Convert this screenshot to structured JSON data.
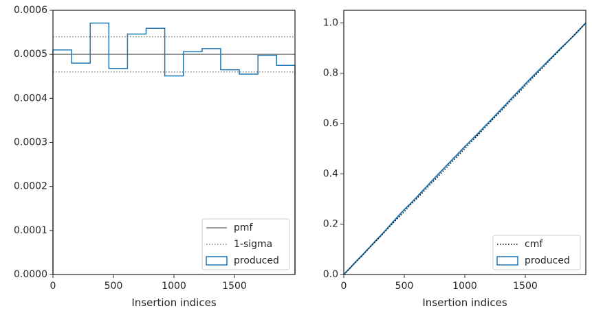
{
  "chart_data": [
    {
      "type": "step",
      "xlabel": "Insertion indices",
      "ylabel": "",
      "xlim": [
        0,
        2000
      ],
      "ylim": [
        0,
        0.0006
      ],
      "xticks": [
        0,
        500,
        1000,
        1500
      ],
      "xtick_labels": [
        "0",
        "500",
        "1000",
        "1500"
      ],
      "yticks": [
        0,
        0.0001,
        0.0002,
        0.0003,
        0.0004,
        0.0005,
        0.0006
      ],
      "ytick_labels": [
        "0.0000",
        "0.0001",
        "0.0002",
        "0.0003",
        "0.0004",
        "0.0005",
        "0.0006"
      ],
      "grid": false,
      "legend_position": "lower-right",
      "legend": [
        {
          "label": "pmf",
          "style": "solid",
          "color": "#808080"
        },
        {
          "label": "1-sigma",
          "style": "dotted",
          "color": "#808080"
        },
        {
          "label": "produced",
          "style": "patch",
          "color": "#1f77b4"
        }
      ],
      "pmf": 0.0005,
      "sigma_band": [
        0.00046,
        0.00054
      ],
      "histogram": {
        "bin_edges": [
          0,
          154,
          308,
          462,
          616,
          770,
          924,
          1078,
          1232,
          1386,
          1540,
          1694,
          1848,
          2000
        ],
        "values": [
          0.00051,
          0.00048,
          0.000571,
          0.000468,
          0.000546,
          0.000559,
          0.000451,
          0.000506,
          0.000513,
          0.000465,
          0.000455,
          0.000498,
          0.000475
        ]
      }
    },
    {
      "type": "line",
      "xlabel": "Insertion indices",
      "ylabel": "",
      "xlim": [
        0,
        2000
      ],
      "ylim": [
        0,
        1.05
      ],
      "xticks": [
        0,
        500,
        1000,
        1500
      ],
      "xtick_labels": [
        "0",
        "500",
        "1000",
        "1500"
      ],
      "yticks": [
        0,
        0.2,
        0.4,
        0.6,
        0.8,
        1.0
      ],
      "ytick_labels": [
        "0.0",
        "0.2",
        "0.4",
        "0.6",
        "0.8",
        "1.0"
      ],
      "grid": false,
      "legend_position": "lower-right",
      "legend": [
        {
          "label": "cmf",
          "style": "dotted",
          "color": "#000000"
        },
        {
          "label": "produced",
          "style": "patch",
          "color": "#1f77b4"
        }
      ],
      "cmf": {
        "x": [
          0,
          2000
        ],
        "y": [
          0,
          1.0
        ]
      },
      "produced": {
        "x": [
          0,
          50,
          100,
          150,
          200,
          250,
          300,
          350,
          400,
          450,
          500,
          550,
          600,
          650,
          700,
          750,
          800,
          850,
          900,
          950,
          1000,
          1050,
          1100,
          1150,
          1200,
          1250,
          1300,
          1350,
          1400,
          1450,
          1500,
          1550,
          1600,
          1650,
          1700,
          1750,
          1800,
          1850,
          1900,
          1950,
          2000
        ],
        "y": [
          0,
          0.025,
          0.051,
          0.075,
          0.101,
          0.127,
          0.152,
          0.178,
          0.205,
          0.232,
          0.258,
          0.281,
          0.306,
          0.332,
          0.357,
          0.383,
          0.408,
          0.433,
          0.458,
          0.483,
          0.508,
          0.532,
          0.556,
          0.581,
          0.606,
          0.631,
          0.656,
          0.681,
          0.707,
          0.732,
          0.757,
          0.782,
          0.806,
          0.83,
          0.854,
          0.878,
          0.902,
          0.925,
          0.949,
          0.974,
          1.0
        ]
      }
    }
  ]
}
